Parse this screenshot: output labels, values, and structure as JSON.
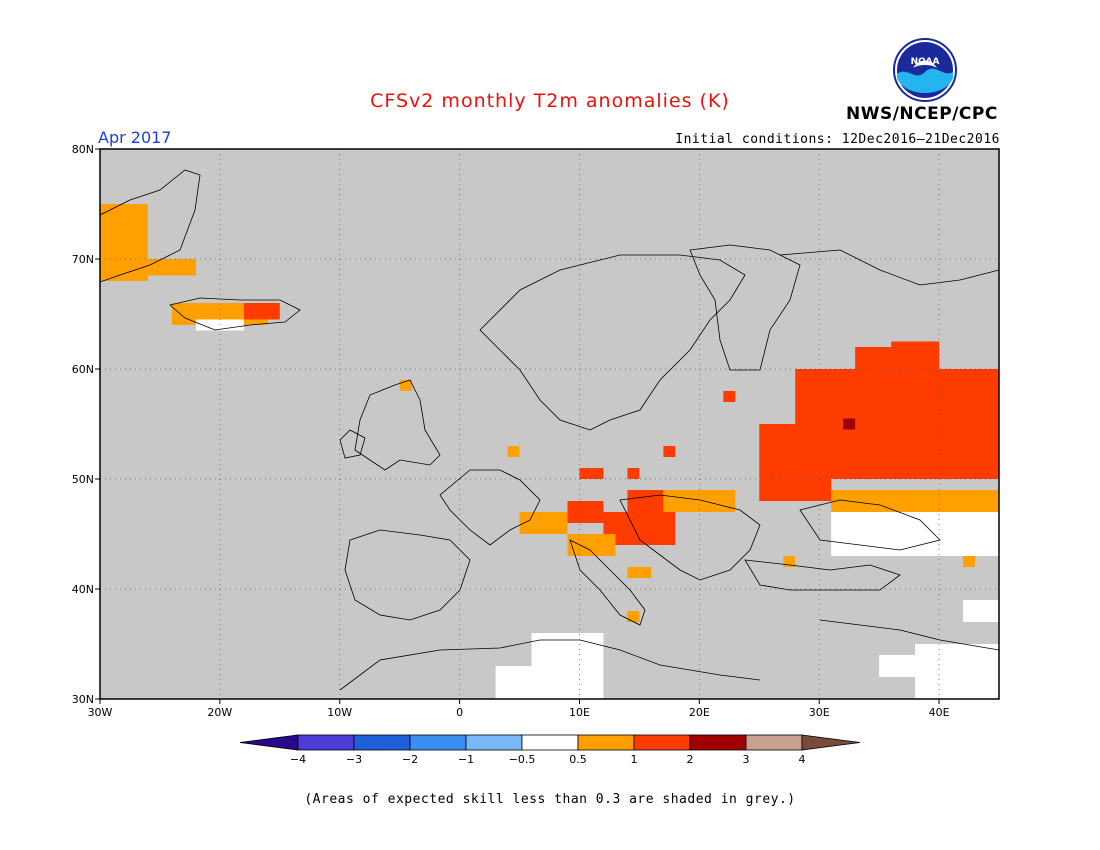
{
  "header": {
    "title": "CFSv2 monthly T2m anomalies (K)",
    "month": "Apr 2017",
    "initial_conditions": "Initial conditions: 12Dec2016–21Dec2016",
    "agency": "NWS/NCEP/CPC",
    "logo_text": "NOAA"
  },
  "map": {
    "lon_range": [
      -30,
      45
    ],
    "lat_range": [
      30,
      80
    ],
    "lon_ticks": [
      {
        "value": -30,
        "label": "30W"
      },
      {
        "value": -20,
        "label": "20W"
      },
      {
        "value": -10,
        "label": "10W"
      },
      {
        "value": 0,
        "label": "0"
      },
      {
        "value": 10,
        "label": "10E"
      },
      {
        "value": 20,
        "label": "20E"
      },
      {
        "value": 30,
        "label": "30E"
      },
      {
        "value": 40,
        "label": "40E"
      }
    ],
    "lat_ticks": [
      {
        "value": 30,
        "label": "30N"
      },
      {
        "value": 40,
        "label": "40N"
      },
      {
        "value": 50,
        "label": "50N"
      },
      {
        "value": 60,
        "label": "60N"
      },
      {
        "value": 70,
        "label": "70N"
      },
      {
        "value": 80,
        "label": "80N"
      }
    ],
    "background_color": "#c8c8c8",
    "anomaly_regions": [
      {
        "category": "0.5-1",
        "lon": [
          -30,
          -26
        ],
        "lat": [
          68,
          75
        ]
      },
      {
        "category": "0.5-1",
        "lon": [
          -26,
          -22
        ],
        "lat": [
          68.5,
          70
        ]
      },
      {
        "category": "0.5-1",
        "lon": [
          -24,
          -16
        ],
        "lat": [
          64,
          66
        ]
      },
      {
        "category": "1-2",
        "lon": [
          -18,
          -15
        ],
        "lat": [
          64.5,
          66
        ]
      },
      {
        "category": "-0.5-0.5",
        "lon": [
          -22,
          -18
        ],
        "lat": [
          63.5,
          64.5
        ]
      },
      {
        "category": "1-2",
        "lon": [
          28,
          45
        ],
        "lat": [
          50,
          60
        ]
      },
      {
        "category": "1-2",
        "lon": [
          33,
          37
        ],
        "lat": [
          60,
          62
        ]
      },
      {
        "category": "1-2",
        "lon": [
          36,
          40
        ],
        "lat": [
          60,
          62.5
        ]
      },
      {
        "category": "1-2",
        "lon": [
          25,
          31
        ],
        "lat": [
          48,
          55
        ]
      },
      {
        "category": "0.5-1",
        "lon": [
          31,
          45
        ],
        "lat": [
          47,
          49
        ]
      },
      {
        "category": "-0.5-0.5",
        "lon": [
          31,
          45
        ],
        "lat": [
          43,
          47
        ]
      },
      {
        "category": "2-3",
        "lon": [
          32,
          33
        ],
        "lat": [
          54.5,
          55.5
        ]
      },
      {
        "category": "1-2",
        "lon": [
          9,
          12
        ],
        "lat": [
          46,
          48
        ]
      },
      {
        "category": "1-2",
        "lon": [
          12,
          18
        ],
        "lat": [
          44,
          47
        ]
      },
      {
        "category": "1-2",
        "lon": [
          14,
          17
        ],
        "lat": [
          47,
          49
        ]
      },
      {
        "category": "0.5-1",
        "lon": [
          17,
          23
        ],
        "lat": [
          47,
          49
        ]
      },
      {
        "category": "0.5-1",
        "lon": [
          5,
          9
        ],
        "lat": [
          45,
          47
        ]
      },
      {
        "category": "0.5-1",
        "lon": [
          9,
          13
        ],
        "lat": [
          43,
          45
        ]
      },
      {
        "category": "0.5-1",
        "lon": [
          14,
          16
        ],
        "lat": [
          41,
          42
        ]
      },
      {
        "category": "1-2",
        "lon": [
          10,
          12
        ],
        "lat": [
          50,
          51
        ]
      },
      {
        "category": "1-2",
        "lon": [
          14,
          15
        ],
        "lat": [
          50,
          51
        ]
      },
      {
        "category": "1-2",
        "lon": [
          17,
          18
        ],
        "lat": [
          52,
          53
        ]
      },
      {
        "category": "1-2",
        "lon": [
          22,
          23
        ],
        "lat": [
          57,
          58
        ]
      },
      {
        "category": "0.5-1",
        "lon": [
          4,
          5
        ],
        "lat": [
          52,
          53
        ]
      },
      {
        "category": "0.5-1",
        "lon": [
          -5,
          -4
        ],
        "lat": [
          58,
          59
        ]
      },
      {
        "category": "0.5-1",
        "lon": [
          14,
          15
        ],
        "lat": [
          37,
          38
        ]
      },
      {
        "category": "0.5-1",
        "lon": [
          27,
          28
        ],
        "lat": [
          42,
          43
        ]
      },
      {
        "category": "0.5-1",
        "lon": [
          42,
          43
        ],
        "lat": [
          42,
          43
        ]
      },
      {
        "category": "-0.5-0.5",
        "lon": [
          6,
          12
        ],
        "lat": [
          30,
          36
        ]
      },
      {
        "category": "-0.5-0.5",
        "lon": [
          3,
          9
        ],
        "lat": [
          30,
          33
        ]
      },
      {
        "category": "-0.5-0.5",
        "lon": [
          38,
          45
        ],
        "lat": [
          30,
          35
        ]
      },
      {
        "category": "-0.5-0.5",
        "lon": [
          35,
          38
        ],
        "lat": [
          32,
          34
        ]
      },
      {
        "category": "-0.5-0.5",
        "lon": [
          42,
          45
        ],
        "lat": [
          37,
          39
        ]
      }
    ]
  },
  "legend": {
    "bins": [
      {
        "range": "<-4",
        "color": "#2a0a8c"
      },
      {
        "range": "-4 to -3",
        "color": "#4d3dd6"
      },
      {
        "range": "-3 to -2",
        "color": "#1f5fd8"
      },
      {
        "range": "-2 to -1",
        "color": "#3b8ef0"
      },
      {
        "range": "-1 to -0.5",
        "color": "#78b8f8"
      },
      {
        "range": "-0.5 to 0.5",
        "color": "#ffffff"
      },
      {
        "range": "0.5 to 1",
        "color": "#ffa000"
      },
      {
        "range": "1 to 2",
        "color": "#ff3c00"
      },
      {
        "range": "2 to 3",
        "color": "#a00000"
      },
      {
        "range": "3 to 4",
        "color": "#c8a090"
      },
      {
        "range": ">4",
        "color": "#7a4a3a"
      }
    ],
    "labels": [
      "−4",
      "−3",
      "−2",
      "−1",
      "−0.5",
      "0.5",
      "1",
      "2",
      "3",
      "4"
    ],
    "category_colors": {
      "-0.5-0.5": "#ffffff",
      "0.5-1": "#ffa000",
      "1-2": "#ff3c00",
      "2-3": "#a00000"
    }
  },
  "footnote": "(Areas of expected skill less than 0.3 are shaded in grey.)"
}
